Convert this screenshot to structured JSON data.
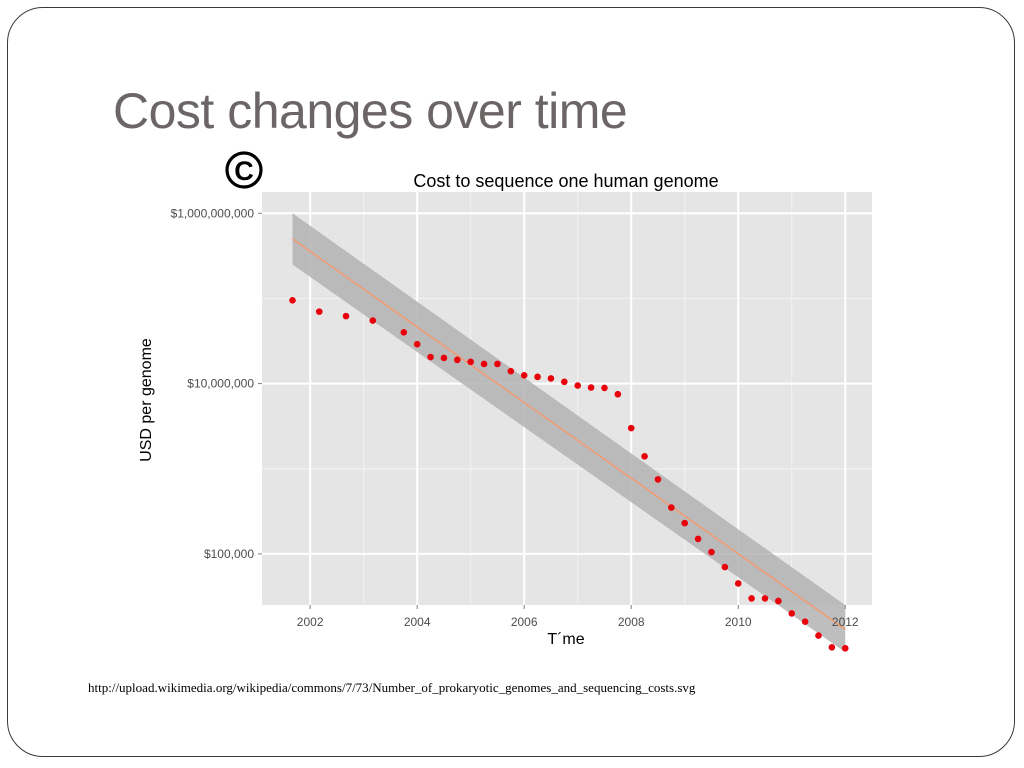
{
  "slide": {
    "title": "Cost changes over time",
    "source_url": "http://upload.wikimedia.org/wikipedia/commons/7/73/Number_of_prokaryotic_genomes_and_sequencing_costs.svg",
    "logo_glyph": "C"
  },
  "chart_data": {
    "type": "scatter",
    "title": "Cost to sequence one human genome",
    "xlabel": "T´me",
    "ylabel": "USD per genome",
    "xlim": [
      2001.1,
      2012.5
    ],
    "ylim_log10": [
      4.4,
      9.25
    ],
    "y_scale": "log",
    "x_ticks": [
      2002,
      2004,
      2006,
      2008,
      2010,
      2012
    ],
    "x_tick_labels": [
      "2002",
      "2004",
      "2006",
      "2008",
      "2010",
      "2012"
    ],
    "y_ticks": [
      100000,
      10000000,
      1000000000
    ],
    "y_tick_labels": [
      "$100,000",
      "$10,000,000",
      "$1,000,000,000"
    ],
    "grid": true,
    "background_color": "#e5e5e5",
    "point_color": "#e8000b",
    "fit_color": "#f49a72",
    "band_color": "#b3b3b3",
    "fit_line": {
      "x": [
        2001.67,
        2012.0
      ],
      "y": [
        500000000,
        13000
      ]
    },
    "confidence_band": {
      "x": [
        2001.67,
        2012.0
      ],
      "upper": [
        1000000000,
        25000
      ],
      "lower": [
        250000000,
        7000
      ]
    },
    "points": {
      "x": [
        2001.67,
        2002.17,
        2002.67,
        2003.17,
        2003.75,
        2004.0,
        2004.25,
        2004.5,
        2004.75,
        2005.0,
        2005.25,
        2005.5,
        2005.75,
        2006.0,
        2006.25,
        2006.5,
        2006.75,
        2007.0,
        2007.25,
        2007.5,
        2007.75,
        2008.0,
        2008.25,
        2008.5,
        2008.75,
        2009.0,
        2009.25,
        2009.5,
        2009.75,
        2010.0,
        2010.25,
        2010.5,
        2010.75,
        2011.0,
        2011.25,
        2011.5,
        2011.75,
        2012.0
      ],
      "y": [
        95000000,
        70000000,
        62000000,
        55000000,
        40000000,
        29000000,
        20500000,
        20000000,
        19000000,
        18000000,
        17000000,
        17000000,
        14000000,
        12500000,
        12000000,
        11500000,
        10500000,
        9500000,
        9000000,
        8900000,
        7500000,
        3000000,
        1400000,
        750000,
        350000,
        230000,
        150000,
        105000,
        70000,
        45000,
        30000,
        30000,
        28000,
        20000,
        16000,
        11000,
        8000,
        7800
      ]
    }
  }
}
